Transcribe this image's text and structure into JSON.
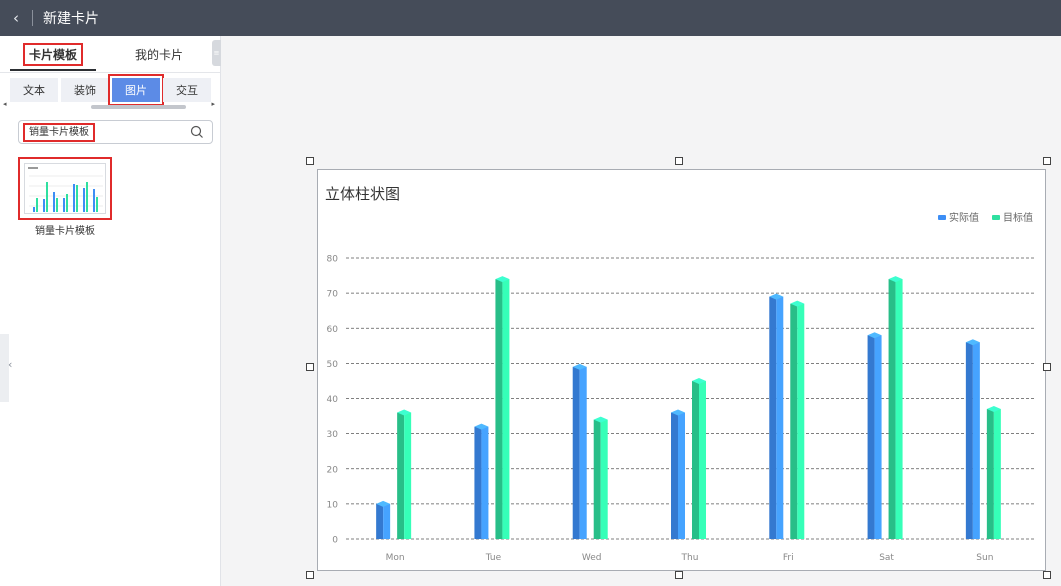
{
  "header": {
    "back_icon": "chevron-left-icon",
    "title": "新建卡片"
  },
  "sidebar": {
    "tabs": [
      {
        "label": "卡片模板",
        "active": true
      },
      {
        "label": "我的卡片",
        "active": false
      }
    ],
    "sub_tabs": [
      {
        "label": "文本",
        "active": false
      },
      {
        "label": "装饰",
        "active": false
      },
      {
        "label": "图片",
        "active": true
      },
      {
        "label": "交互",
        "active": false
      }
    ],
    "search": {
      "value": "销量卡片模板",
      "icon": "search-icon"
    },
    "templates": [
      {
        "label": "销量卡片模板"
      }
    ]
  },
  "card": {
    "title": "立体柱状图",
    "legend": [
      {
        "label": "实际值",
        "color": "#3d8ef5"
      },
      {
        "label": "目标值",
        "color": "#2fe0a0"
      }
    ]
  },
  "chart_data": {
    "type": "bar",
    "title": "立体柱状图",
    "categories": [
      "Mon",
      "Tue",
      "Wed",
      "Thu",
      "Fri",
      "Sat",
      "Sun"
    ],
    "series": [
      {
        "name": "实际值",
        "values": [
          10,
          32,
          49,
          36,
          69,
          58,
          56
        ],
        "color": "#3d8ef5"
      },
      {
        "name": "目标值",
        "values": [
          36,
          74,
          34,
          45,
          67,
          74,
          37
        ],
        "color": "#2fe0a0"
      }
    ],
    "ylim": [
      0,
      80
    ],
    "yticks": [
      0,
      10,
      20,
      30,
      40,
      50,
      60,
      70,
      80
    ],
    "grid": true,
    "legend_position": "top-right"
  }
}
